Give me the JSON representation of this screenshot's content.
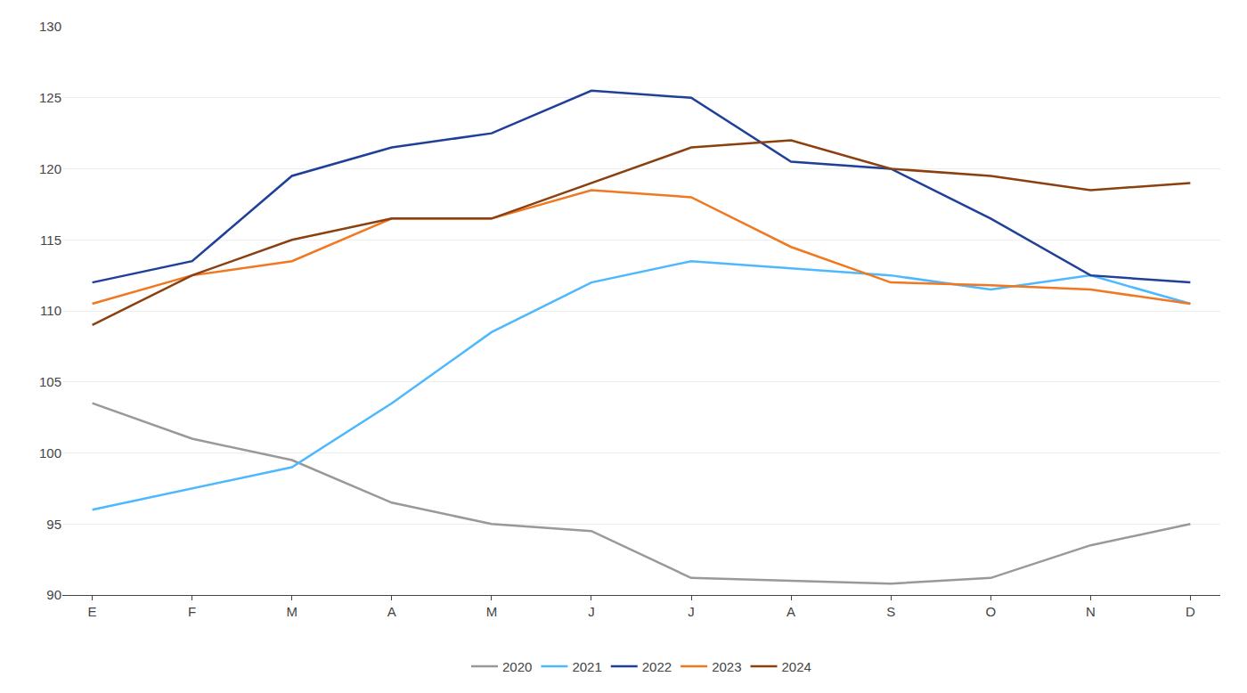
{
  "chart_data": {
    "type": "line",
    "categories": [
      "E",
      "F",
      "M",
      "A",
      "M",
      "J",
      "J",
      "A",
      "S",
      "O",
      "N",
      "D"
    ],
    "series": [
      {
        "name": "2020",
        "color": "#999999",
        "values": [
          103.5,
          101.0,
          99.5,
          96.5,
          95.0,
          94.5,
          91.2,
          91.0,
          90.8,
          91.2,
          93.5,
          95.0
        ]
      },
      {
        "name": "2021",
        "color": "#4db8ff",
        "values": [
          96.0,
          97.5,
          99.0,
          103.5,
          108.5,
          112.0,
          113.5,
          113.0,
          112.5,
          111.5,
          112.5,
          110.5
        ]
      },
      {
        "name": "2022",
        "color": "#1f3f99",
        "values": [
          112.0,
          113.5,
          119.5,
          121.5,
          122.5,
          125.5,
          125.0,
          120.5,
          120.0,
          116.5,
          112.5,
          112.0
        ]
      },
      {
        "name": "2023",
        "color": "#f07820",
        "values": [
          110.5,
          112.5,
          113.5,
          116.5,
          116.5,
          118.5,
          118.0,
          114.5,
          112.0,
          111.8,
          111.5,
          110.5
        ]
      },
      {
        "name": "2024",
        "color": "#8b4010",
        "values": [
          109.0,
          112.5,
          115.0,
          116.5,
          116.5,
          119.0,
          121.5,
          122.0,
          120.0,
          119.5,
          118.5,
          119.0
        ]
      }
    ],
    "ylim": [
      90,
      130
    ],
    "yticks": [
      90,
      95,
      100,
      105,
      110,
      115,
      120,
      125,
      130
    ],
    "grid": true,
    "legend": "bottom"
  }
}
